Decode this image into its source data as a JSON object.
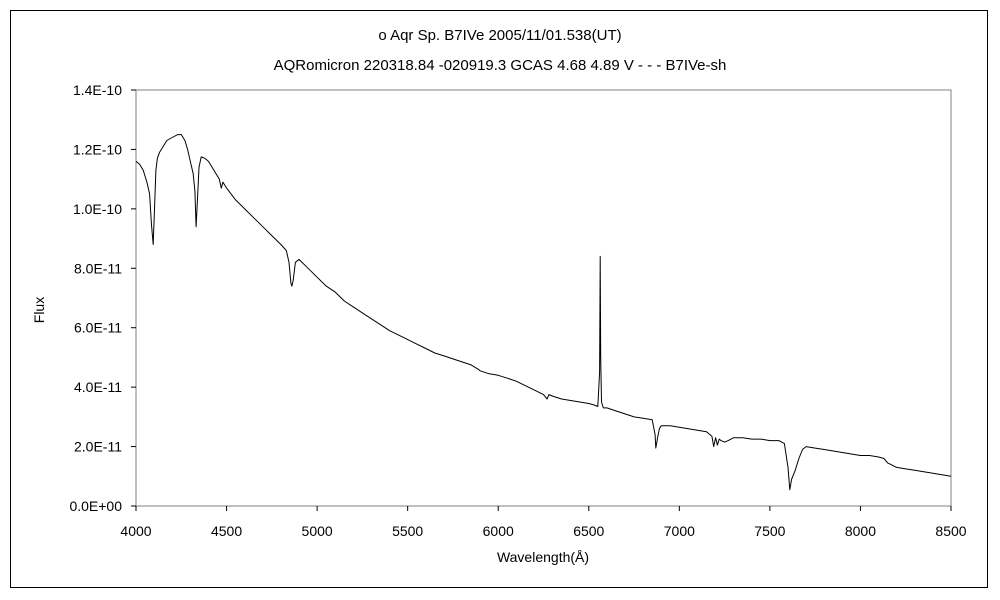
{
  "chart_data": {
    "type": "line",
    "title": "o  Aqr    Sp. B7IVe    2005/11/01.538(UT)",
    "subtitle": "AQRomicron 220318.84 -020919.3 GCAS 4.68 4.89 V - - - B7IVe-sh",
    "xlabel": "Wavelength(Å)",
    "ylabel": "Flux",
    "xlim": [
      4000,
      8500
    ],
    "ylim": [
      0,
      1.4e-10
    ],
    "grid": false,
    "legend": "none",
    "line_color": "#000000",
    "x_ticks": [
      4000,
      4500,
      5000,
      5500,
      6000,
      6500,
      7000,
      7500,
      8000,
      8500
    ],
    "x_tick_labels": [
      "4000",
      "4500",
      "5000",
      "5500",
      "6000",
      "6500",
      "7000",
      "7500",
      "8000",
      "8500"
    ],
    "y_ticks": [
      0,
      2e-11,
      4e-11,
      6e-11,
      8e-11,
      1e-10,
      1.2e-10,
      1.4e-10
    ],
    "y_tick_labels": [
      "0.0E+00",
      "2.0E-11",
      "4.0E-11",
      "6.0E-11",
      "8.0E-11",
      "1.0E-10",
      "1.2E-10",
      "1.4E-10"
    ],
    "series": [
      {
        "x": [
          4000,
          4020,
          4040,
          4060,
          4075,
          4085,
          4095,
          4102,
          4110,
          4118,
          4130,
          4150,
          4170,
          4200,
          4230,
          4250,
          4270,
          4285,
          4300,
          4315,
          4325,
          4332,
          4340,
          4348,
          4360,
          4380,
          4400,
          4420,
          4440,
          4460,
          4471,
          4480,
          4500,
          4550,
          4600,
          4650,
          4700,
          4750,
          4800,
          4830,
          4845,
          4855,
          4861,
          4868,
          4880,
          4900,
          4950,
          5000,
          5050,
          5100,
          5150,
          5200,
          5250,
          5300,
          5350,
          5400,
          5450,
          5500,
          5550,
          5600,
          5650,
          5700,
          5750,
          5800,
          5850,
          5890,
          5900,
          5950,
          6000,
          6050,
          6100,
          6150,
          6200,
          6250,
          6270,
          6280,
          6300,
          6350,
          6400,
          6450,
          6500,
          6530,
          6550,
          6560,
          6563,
          6566,
          6570,
          6580,
          6600,
          6650,
          6700,
          6750,
          6800,
          6850,
          6866,
          6870,
          6880,
          6890,
          6900,
          6950,
          7000,
          7050,
          7100,
          7150,
          7180,
          7190,
          7200,
          7210,
          7220,
          7230,
          7250,
          7270,
          7300,
          7350,
          7400,
          7450,
          7500,
          7550,
          7580,
          7600,
          7610,
          7620,
          7640,
          7660,
          7680,
          7700,
          7750,
          7800,
          7850,
          7900,
          7950,
          8000,
          8050,
          8100,
          8130,
          8150,
          8200,
          8250,
          8300,
          8350,
          8400,
          8450,
          8500
        ],
        "values": [
          1.16e-10,
          1.15e-10,
          1.13e-10,
          1.09e-10,
          1.05e-10,
          9.5e-11,
          8.8e-11,
          1e-10,
          1.13e-10,
          1.17e-10,
          1.19e-10,
          1.21e-10,
          1.23e-10,
          1.24e-10,
          1.25e-10,
          1.25e-10,
          1.23e-10,
          1.2e-10,
          1.16e-10,
          1.12e-10,
          1.06e-10,
          9.4e-11,
          1.04e-10,
          1.14e-10,
          1.175e-10,
          1.17e-10,
          1.16e-10,
          1.14e-10,
          1.12e-10,
          1.1e-10,
          1.07e-10,
          1.09e-10,
          1.07e-10,
          1.03e-10,
          1e-10,
          9.7e-11,
          9.4e-11,
          9.1e-11,
          8.8e-11,
          8.6e-11,
          8.2e-11,
          7.5e-11,
          7.4e-11,
          7.6e-11,
          8.2e-11,
          8.3e-11,
          8e-11,
          7.7e-11,
          7.4e-11,
          7.2e-11,
          6.9e-11,
          6.7e-11,
          6.5e-11,
          6.3e-11,
          6.1e-11,
          5.9e-11,
          5.75e-11,
          5.6e-11,
          5.45e-11,
          5.3e-11,
          5.15e-11,
          5.05e-11,
          4.95e-11,
          4.85e-11,
          4.75e-11,
          4.6e-11,
          4.55e-11,
          4.45e-11,
          4.4e-11,
          4.3e-11,
          4.2e-11,
          4.05e-11,
          3.9e-11,
          3.75e-11,
          3.6e-11,
          3.75e-11,
          3.7e-11,
          3.6e-11,
          3.55e-11,
          3.5e-11,
          3.45e-11,
          3.4e-11,
          3.35e-11,
          4.5e-11,
          8.4e-11,
          5e-11,
          3.5e-11,
          3.3e-11,
          3.3e-11,
          3.2e-11,
          3.1e-11,
          3e-11,
          2.95e-11,
          2.9e-11,
          2.4e-11,
          1.95e-11,
          2.3e-11,
          2.6e-11,
          2.7e-11,
          2.7e-11,
          2.65e-11,
          2.6e-11,
          2.55e-11,
          2.5e-11,
          2.35e-11,
          2e-11,
          2.3e-11,
          2.05e-11,
          2.25e-11,
          2.2e-11,
          2.15e-11,
          2.2e-11,
          2.3e-11,
          2.3e-11,
          2.25e-11,
          2.25e-11,
          2.2e-11,
          2.2e-11,
          2.1e-11,
          1.3e-11,
          5.5e-12,
          9e-12,
          1.2e-11,
          1.6e-11,
          1.9e-11,
          2e-11,
          1.95e-11,
          1.9e-11,
          1.85e-11,
          1.8e-11,
          1.75e-11,
          1.7e-11,
          1.7e-11,
          1.65e-11,
          1.6e-11,
          1.45e-11,
          1.3e-11,
          1.25e-11,
          1.2e-11,
          1.15e-11,
          1.1e-11,
          1.05e-11,
          1e-11
        ]
      }
    ]
  }
}
